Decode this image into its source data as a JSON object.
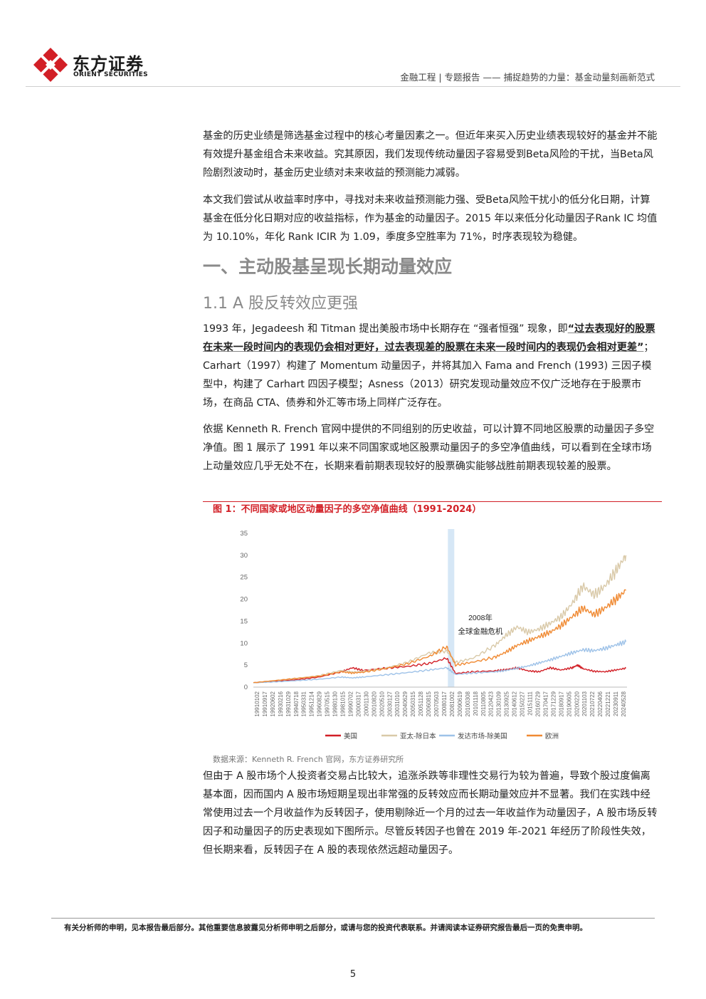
{
  "brand": {
    "name_cn": "东方证券",
    "name_en": "ORIENT SECURITIES"
  },
  "header": {
    "breadcrumb": "金融工程 | 专题报告 —— 捕捉趋势的力量：基金动量刻画新范式"
  },
  "paragraphs": {
    "p1": "基金的历史业绩是筛选基金过程中的核心考量因素之一。但近年来买入历史业绩表现较好的基金并不能有效提升基金组合未来收益。究其原因，我们发现传统动量因子容易受到Beta风险的干扰，当Beta风险剧烈波动时，基金历史业绩对未来收益的预测能力减弱。",
    "p2": "本文我们尝试从收益率时序中，寻找对未来收益预测能力强、受Beta风险干扰小的低分化日期，计算基金在低分化日期对应的收益指标，作为基金的动量因子。2015 年以来低分化动量因子Rank IC 均值为 10.10%，年化 Rank ICIR 为 1.09，季度多空胜率为 71%，时序表现较为稳健。",
    "p3_a": "1993 年，Jegadeesh 和 Titman 提出美股市场中长期存在 “强者恒强” 现象，即",
    "p3_b": "“过去表现好的股票在未来一段时间内的表现仍会相对更好，过去表现差的股票在未来一段时间内的表现仍会相对更差”",
    "p3_c": "；Carhart（1997）构建了 Momentum 动量因子，并将其加入 Fama and French (1993) 三因子模型中，构建了 Carhart 四因子模型；Asness（2013）研究发现动量效应不仅广泛地存在于股票市场，在商品 CTA、债券和外汇等市场上同样广泛存在。",
    "p4": "依据 Kenneth R. French 官网中提供的不同组别的历史收益，可以计算不同地区股票的动量因子多空净值。图 1 展示了 1991 年以来不同国家或地区股票动量因子的多空净值曲线，可以看到在全球市场上动量效应几乎无处不在，长期来看前期表现较好的股票确实能够战胜前期表现较差的股票。",
    "p5": "但由于 A 股市场个人投资者交易占比较大，追涨杀跌等非理性交易行为较为普遍，导致个股过度偏离基本面，因而国内 A 股市场短期呈现出非常强的反转效应而长期动量效应并不显著。我们在实践中经常使用过去一个月收益作为反转因子，使用剔除近一个月的过去一年收益作为动量因子，A 股市场反转因子和动量因子的历史表现如下图所示。尽管反转因子也曾在 2019 年-2021 年经历了阶段性失效，但长期来看，反转因子在 A 股的表现依然远超动量因子。"
  },
  "headings": {
    "h1": "一、主动股基呈现长期动量效应",
    "h2": "1.1 A 股反转效应更强"
  },
  "figure": {
    "title": "图 1：不同国家或地区动量因子的多空净值曲线（1991-2024）",
    "source": "数据来源：Kenneth R. French 官网，东方证券研究所"
  },
  "chart_data": {
    "type": "line",
    "ylim": [
      0,
      35
    ],
    "yticks": [
      "0",
      "5",
      "10",
      "15",
      "20",
      "25",
      "30",
      "35"
    ],
    "x_tick_labels": [
      "19910102",
      "19910917",
      "19920602",
      "19930216",
      "19931029",
      "19940718",
      "19950331",
      "19951214",
      "19960829",
      "19970515",
      "19980130",
      "19981015",
      "19990702",
      "20000317",
      "20001130",
      "20010820",
      "20020510",
      "20030127",
      "20031010",
      "20040629",
      "20050315",
      "20051128",
      "20060815",
      "20070503",
      "20080117",
      "20081002",
      "20090619",
      "20100308",
      "20101118",
      "20110805",
      "20120423",
      "20130109",
      "20130925",
      "20140612",
      "20150227",
      "20151111",
      "20160729",
      "20170417",
      "20171229",
      "20180917",
      "20190605",
      "20200220",
      "20201103",
      "20210722",
      "20220406",
      "20221221",
      "20230911",
      "20240528"
    ],
    "annotation": {
      "line1": "2008年",
      "line2": "全球金融危机"
    },
    "highlight_band_year": 2008,
    "series": [
      {
        "name": "美国",
        "color": "#d21f26",
        "x": [
          1991,
          1993,
          1995,
          1997,
          1999,
          2000,
          2001,
          2003,
          2005,
          2007,
          2008.6,
          2009.4,
          2011,
          2013,
          2014,
          2015,
          2016,
          2017,
          2018,
          2019,
          2020,
          2020.5,
          2021,
          2022,
          2023,
          2024,
          2024.9
        ],
        "values": [
          1,
          1.3,
          1.7,
          2.3,
          3.5,
          4.4,
          3.8,
          4.3,
          4.7,
          5.4,
          6.6,
          3.1,
          3.5,
          3.7,
          4,
          4.4,
          3.7,
          3.5,
          4.4,
          3.9,
          4.4,
          5,
          4.2,
          3.6,
          3.5,
          3.9,
          4.3
        ]
      },
      {
        "name": "亚太-除日本",
        "color": "#d9c9a8",
        "x": [
          1991,
          1993,
          1995,
          1997,
          1999,
          2000,
          2001,
          2003,
          2005,
          2007,
          2008.6,
          2009.4,
          2011,
          2013,
          2014,
          2015,
          2016,
          2017,
          2018,
          2019,
          2020,
          2021,
          2022,
          2023,
          2024,
          2024.9
        ],
        "values": [
          1,
          1.5,
          2,
          2.6,
          3.8,
          3.4,
          3.6,
          4.3,
          5.6,
          7.8,
          8.2,
          5.6,
          6.6,
          9.5,
          11.8,
          13.7,
          12.5,
          13.2,
          14.5,
          16,
          19,
          23,
          21,
          23,
          26.5,
          30
        ]
      },
      {
        "name": "发达市场-除美国",
        "color": "#9ec2e8",
        "x": [
          1991,
          1993,
          1995,
          1997,
          1999,
          2000,
          2001,
          2003,
          2005,
          2007,
          2008.6,
          2009.4,
          2011,
          2013,
          2014,
          2015,
          2016,
          2017,
          2018,
          2019,
          2020,
          2021,
          2022,
          2023,
          2024,
          2024.9
        ],
        "values": [
          1,
          1.2,
          1.5,
          1.8,
          2.3,
          2.1,
          2.3,
          2.8,
          3.3,
          3.9,
          4.4,
          2.9,
          3.2,
          3.5,
          3.8,
          4.3,
          4.8,
          5.5,
          6.2,
          7,
          7.8,
          8.5,
          8.3,
          8.8,
          9.6,
          10.3
        ]
      },
      {
        "name": "欧洲",
        "color": "#f08a33",
        "x": [
          1991,
          1993,
          1995,
          1997,
          1999,
          2000,
          2001,
          2003,
          2005,
          2007,
          2008.6,
          2009.4,
          2011,
          2013,
          2014,
          2015,
          2016,
          2017,
          2018,
          2019,
          2020,
          2021,
          2022,
          2023,
          2024,
          2024.9
        ],
        "values": [
          1,
          1.5,
          2,
          2.5,
          3.5,
          3.2,
          3.4,
          4.2,
          5.3,
          7,
          9.2,
          5,
          5.7,
          6.8,
          8,
          9.5,
          10.5,
          11.5,
          12.5,
          14,
          16,
          18,
          16.5,
          18,
          20,
          22
        ]
      }
    ]
  },
  "footer": {
    "note": "有关分析师的申明，见本报告最后部分。其他重要信息披露见分析师申明之后部分，或请与您的投资代表联系。并请阅读本证券研究报告最后一页的免责申明。",
    "page": "5"
  }
}
